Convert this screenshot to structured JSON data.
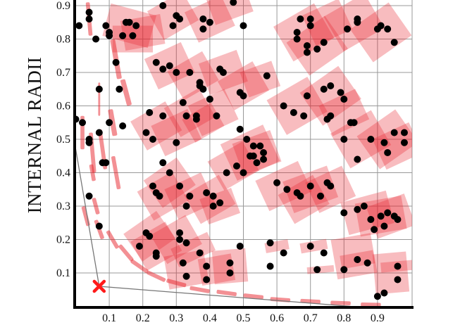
{
  "chart_data": {
    "type": "scatter",
    "title": "",
    "xlabel": "",
    "ylabel": "INTERNAL RADII",
    "xlim": [
      0,
      1.0
    ],
    "ylim": [
      0,
      0.92
    ],
    "grid": true,
    "x_ticks": [
      "0.1",
      "0.2",
      "0.3",
      "0.4",
      "0.5",
      "0.6",
      "0.7",
      "0.8",
      "0.9"
    ],
    "y_ticks": [
      "0.1",
      "0.2",
      "0.3",
      "0.4",
      "0.5",
      "0.6",
      "0.7",
      "0.8",
      "0.9"
    ],
    "marker": {
      "x": 0.07,
      "y": 0.06,
      "symbol": "x",
      "color": "#ff1a1a"
    },
    "boundary_line": [
      [
        0.0,
        0.47
      ],
      [
        0.07,
        0.06
      ],
      [
        0.82,
        0.0
      ]
    ],
    "colors": {
      "points": "#000000",
      "rects": "#e8222a",
      "marker": "#ff1a1a",
      "grid": "#999999",
      "axis": "#000000",
      "boundary": "#777777"
    },
    "points": [
      [
        0.01,
        0.84
      ],
      [
        0.04,
        0.88
      ],
      [
        0.04,
        0.86
      ],
      [
        0.06,
        0.8
      ],
      [
        0.07,
        0.65
      ],
      [
        0.09,
        0.84
      ],
      [
        0.1,
        0.82
      ],
      [
        0.1,
        0.81
      ],
      [
        0.12,
        0.73
      ],
      [
        0.13,
        0.65
      ],
      [
        0.15,
        0.85
      ],
      [
        0.16,
        0.85
      ],
      [
        0.14,
        0.81
      ],
      [
        0.18,
        0.84
      ],
      [
        0.17,
        0.81
      ],
      [
        0.0,
        0.56
      ],
      [
        0.02,
        0.55
      ],
      [
        0.04,
        0.5
      ],
      [
        0.04,
        0.49
      ],
      [
        0.08,
        0.43
      ],
      [
        0.09,
        0.43
      ],
      [
        0.07,
        0.52
      ],
      [
        0.1,
        0.55
      ],
      [
        0.14,
        0.54
      ],
      [
        0.04,
        0.33
      ],
      [
        0.07,
        0.24
      ],
      [
        0.22,
        0.58
      ],
      [
        0.21,
        0.52
      ],
      [
        0.23,
        0.5
      ],
      [
        0.26,
        0.57
      ],
      [
        0.3,
        0.49
      ],
      [
        0.32,
        0.61
      ],
      [
        0.33,
        0.57
      ],
      [
        0.36,
        0.57
      ],
      [
        0.36,
        0.56
      ],
      [
        0.4,
        0.62
      ],
      [
        0.42,
        0.57
      ],
      [
        0.26,
        0.43
      ],
      [
        0.28,
        0.4
      ],
      [
        0.23,
        0.36
      ],
      [
        0.24,
        0.34
      ],
      [
        0.25,
        0.33
      ],
      [
        0.31,
        0.36
      ],
      [
        0.34,
        0.33
      ],
      [
        0.33,
        0.3
      ],
      [
        0.39,
        0.34
      ],
      [
        0.41,
        0.33
      ],
      [
        0.41,
        0.3
      ],
      [
        0.43,
        0.31
      ],
      [
        0.49,
        0.53
      ],
      [
        0.51,
        0.5
      ],
      [
        0.53,
        0.48
      ],
      [
        0.55,
        0.48
      ],
      [
        0.56,
        0.46
      ],
      [
        0.52,
        0.45
      ],
      [
        0.53,
        0.45
      ],
      [
        0.56,
        0.44
      ],
      [
        0.54,
        0.43
      ],
      [
        0.48,
        0.42
      ],
      [
        0.5,
        0.4
      ],
      [
        0.45,
        0.4
      ],
      [
        0.21,
        0.22
      ],
      [
        0.22,
        0.21
      ],
      [
        0.19,
        0.18
      ],
      [
        0.24,
        0.16
      ],
      [
        0.24,
        0.15
      ],
      [
        0.31,
        0.22
      ],
      [
        0.31,
        0.2
      ],
      [
        0.33,
        0.19
      ],
      [
        0.37,
        0.16
      ],
      [
        0.32,
        0.13
      ],
      [
        0.39,
        0.12
      ],
      [
        0.46,
        0.13
      ],
      [
        0.33,
        0.09
      ],
      [
        0.39,
        0.08
      ],
      [
        0.46,
        0.1
      ],
      [
        0.49,
        0.18
      ],
      [
        0.58,
        0.12
      ],
      [
        0.26,
        0.9
      ],
      [
        0.3,
        0.87
      ],
      [
        0.31,
        0.86
      ],
      [
        0.29,
        0.84
      ],
      [
        0.38,
        0.86
      ],
      [
        0.4,
        0.85
      ],
      [
        0.38,
        0.83
      ],
      [
        0.47,
        0.91
      ],
      [
        0.5,
        0.84
      ],
      [
        0.24,
        0.73
      ],
      [
        0.28,
        0.72
      ],
      [
        0.26,
        0.71
      ],
      [
        0.3,
        0.7
      ],
      [
        0.34,
        0.7
      ],
      [
        0.37,
        0.66
      ],
      [
        0.37,
        0.67
      ],
      [
        0.38,
        0.65
      ],
      [
        0.44,
        0.7
      ],
      [
        0.43,
        0.71
      ],
      [
        0.49,
        0.64
      ],
      [
        0.5,
        0.63
      ],
      [
        0.57,
        0.69
      ],
      [
        0.67,
        0.86
      ],
      [
        0.66,
        0.82
      ],
      [
        0.66,
        0.8
      ],
      [
        0.7,
        0.86
      ],
      [
        0.7,
        0.84
      ],
      [
        0.69,
        0.78
      ],
      [
        0.69,
        0.76
      ],
      [
        0.72,
        0.77
      ],
      [
        0.74,
        0.79
      ],
      [
        0.81,
        0.83
      ],
      [
        0.84,
        0.85
      ],
      [
        0.84,
        0.86
      ],
      [
        0.9,
        0.83
      ],
      [
        0.91,
        0.84
      ],
      [
        0.93,
        0.83
      ],
      [
        0.95,
        0.79
      ],
      [
        0.62,
        0.6
      ],
      [
        0.65,
        0.58
      ],
      [
        0.68,
        0.57
      ],
      [
        0.69,
        0.63
      ],
      [
        0.74,
        0.65
      ],
      [
        0.76,
        0.66
      ],
      [
        0.79,
        0.64
      ],
      [
        0.8,
        0.62
      ],
      [
        0.82,
        0.55
      ],
      [
        0.83,
        0.55
      ],
      [
        0.76,
        0.57
      ],
      [
        0.75,
        0.56
      ],
      [
        0.8,
        0.5
      ],
      [
        0.84,
        0.44
      ],
      [
        0.88,
        0.5
      ],
      [
        0.92,
        0.49
      ],
      [
        0.95,
        0.52
      ],
      [
        0.98,
        0.52
      ],
      [
        0.98,
        0.49
      ],
      [
        0.93,
        0.46
      ],
      [
        0.6,
        0.37
      ],
      [
        0.63,
        0.35
      ],
      [
        0.66,
        0.34
      ],
      [
        0.67,
        0.33
      ],
      [
        0.7,
        0.36
      ],
      [
        0.73,
        0.33
      ],
      [
        0.75,
        0.37
      ],
      [
        0.76,
        0.36
      ],
      [
        0.8,
        0.28
      ],
      [
        0.84,
        0.29
      ],
      [
        0.86,
        0.3
      ],
      [
        0.88,
        0.26
      ],
      [
        0.91,
        0.27
      ],
      [
        0.93,
        0.28
      ],
      [
        0.95,
        0.27
      ],
      [
        0.96,
        0.26
      ],
      [
        0.92,
        0.24
      ],
      [
        0.89,
        0.23
      ],
      [
        0.62,
        0.16
      ],
      [
        0.7,
        0.18
      ],
      [
        0.72,
        0.11
      ],
      [
        0.8,
        0.11
      ],
      [
        0.84,
        0.14
      ],
      [
        0.87,
        0.13
      ],
      [
        0.96,
        0.12
      ],
      [
        0.96,
        0.08
      ],
      [
        0.9,
        0.03
      ],
      [
        0.92,
        0.04
      ],
      [
        0.74,
        0.16
      ],
      [
        0.58,
        0.19
      ]
    ],
    "rects": [
      [
        0.16,
        0.84,
        0.14,
        0.1,
        15
      ],
      [
        0.2,
        0.82,
        0.12,
        0.09,
        -10
      ],
      [
        0.17,
        0.8,
        0.12,
        0.08,
        0
      ],
      [
        0.29,
        0.87,
        0.12,
        0.1,
        -30
      ],
      [
        0.4,
        0.86,
        0.12,
        0.1,
        -25
      ],
      [
        0.46,
        0.9,
        0.12,
        0.08,
        -20
      ],
      [
        0.28,
        0.72,
        0.12,
        0.1,
        -25
      ],
      [
        0.35,
        0.69,
        0.12,
        0.1,
        -30
      ],
      [
        0.44,
        0.7,
        0.12,
        0.1,
        -20
      ],
      [
        0.5,
        0.66,
        0.12,
        0.1,
        -30
      ],
      [
        0.55,
        0.68,
        0.1,
        0.08,
        -20
      ],
      [
        0.68,
        0.82,
        0.14,
        0.12,
        -30
      ],
      [
        0.72,
        0.78,
        0.14,
        0.12,
        -35
      ],
      [
        0.83,
        0.85,
        0.14,
        0.12,
        -30
      ],
      [
        0.91,
        0.82,
        0.14,
        0.12,
        -35
      ],
      [
        0.75,
        0.85,
        0.12,
        0.1,
        -25
      ],
      [
        0.24,
        0.54,
        0.12,
        0.1,
        -30
      ],
      [
        0.3,
        0.52,
        0.12,
        0.1,
        -25
      ],
      [
        0.34,
        0.58,
        0.12,
        0.1,
        -30
      ],
      [
        0.41,
        0.58,
        0.12,
        0.1,
        -25
      ],
      [
        0.38,
        0.55,
        0.1,
        0.08,
        -30
      ],
      [
        0.52,
        0.46,
        0.14,
        0.12,
        -25
      ],
      [
        0.54,
        0.46,
        0.12,
        0.1,
        -20
      ],
      [
        0.47,
        0.42,
        0.12,
        0.1,
        -30
      ],
      [
        0.28,
        0.37,
        0.12,
        0.1,
        -35
      ],
      [
        0.26,
        0.33,
        0.12,
        0.1,
        -30
      ],
      [
        0.34,
        0.33,
        0.12,
        0.1,
        -25
      ],
      [
        0.4,
        0.32,
        0.12,
        0.1,
        -30
      ],
      [
        0.43,
        0.3,
        0.1,
        0.08,
        -20
      ],
      [
        0.66,
        0.6,
        0.14,
        0.12,
        -30
      ],
      [
        0.76,
        0.63,
        0.14,
        0.12,
        -35
      ],
      [
        0.8,
        0.58,
        0.12,
        0.1,
        -25
      ],
      [
        0.85,
        0.5,
        0.14,
        0.12,
        -30
      ],
      [
        0.93,
        0.5,
        0.14,
        0.12,
        -35
      ],
      [
        0.96,
        0.48,
        0.12,
        0.1,
        -25
      ],
      [
        0.62,
        0.36,
        0.14,
        0.1,
        -25
      ],
      [
        0.7,
        0.35,
        0.14,
        0.1,
        -20
      ],
      [
        0.76,
        0.35,
        0.12,
        0.1,
        -25
      ],
      [
        0.68,
        0.32,
        0.12,
        0.1,
        -30
      ],
      [
        0.87,
        0.28,
        0.14,
        0.1,
        -15
      ],
      [
        0.91,
        0.27,
        0.14,
        0.1,
        -10
      ],
      [
        0.94,
        0.27,
        0.12,
        0.1,
        -20
      ],
      [
        0.22,
        0.21,
        0.12,
        0.1,
        -35
      ],
      [
        0.24,
        0.18,
        0.12,
        0.1,
        -30
      ],
      [
        0.3,
        0.2,
        0.12,
        0.1,
        -30
      ],
      [
        0.35,
        0.17,
        0.12,
        0.06,
        -25
      ],
      [
        0.33,
        0.11,
        0.12,
        0.1,
        -10
      ],
      [
        0.42,
        0.11,
        0.1,
        0.08,
        -10
      ],
      [
        0.46,
        0.12,
        0.1,
        0.1,
        -5
      ],
      [
        0.83,
        0.15,
        0.12,
        0.12,
        -10
      ],
      [
        0.94,
        0.1,
        0.1,
        0.12,
        -5
      ],
      [
        0.84,
        0.14,
        0.1,
        0.04,
        -10
      ],
      [
        0.96,
        0.12,
        0.1,
        0.03,
        -5
      ],
      [
        0.6,
        0.18,
        0.07,
        0.03,
        -10
      ],
      [
        0.71,
        0.18,
        0.08,
        0.03,
        -10
      ],
      [
        0.73,
        0.11,
        0.08,
        0.02,
        -5
      ]
    ],
    "dashes": [
      [
        0.04,
        0.86,
        0.012,
        0.1,
        -5
      ],
      [
        0.12,
        0.74,
        0.015,
        0.12,
        -10
      ],
      [
        0.15,
        0.64,
        0.015,
        0.08,
        -15
      ],
      [
        0.07,
        0.62,
        0.006,
        0.1,
        0
      ],
      [
        0.02,
        0.52,
        0.012,
        0.1,
        0
      ],
      [
        0.05,
        0.46,
        0.012,
        0.12,
        -5
      ],
      [
        0.08,
        0.47,
        0.012,
        0.12,
        -8
      ],
      [
        0.11,
        0.55,
        0.015,
        0.08,
        -10
      ],
      [
        0.05,
        0.4,
        0.012,
        0.05,
        -10
      ],
      [
        0.06,
        0.3,
        0.012,
        0.05,
        -15
      ],
      [
        0.07,
        0.23,
        0.012,
        0.06,
        -20
      ],
      [
        0.11,
        0.2,
        0.012,
        0.06,
        -30
      ],
      [
        0.15,
        0.16,
        0.012,
        0.06,
        -40
      ],
      [
        0.19,
        0.12,
        0.012,
        0.06,
        -55
      ],
      [
        0.24,
        0.09,
        0.012,
        0.06,
        -65
      ],
      [
        0.3,
        0.07,
        0.012,
        0.06,
        -75
      ],
      [
        0.37,
        0.05,
        0.012,
        0.06,
        -80
      ],
      [
        0.45,
        0.04,
        0.012,
        0.06,
        -82
      ],
      [
        0.53,
        0.03,
        0.012,
        0.06,
        -84
      ],
      [
        0.61,
        0.02,
        0.012,
        0.06,
        -86
      ],
      [
        0.7,
        0.015,
        0.012,
        0.06,
        -87
      ],
      [
        0.79,
        0.01,
        0.012,
        0.06,
        -88
      ],
      [
        0.88,
        0.005,
        0.012,
        0.06,
        -89
      ],
      [
        0.03,
        0.27,
        0.012,
        0.06,
        -15
      ],
      [
        0.12,
        0.4,
        0.012,
        0.1,
        -10
      ]
    ]
  }
}
